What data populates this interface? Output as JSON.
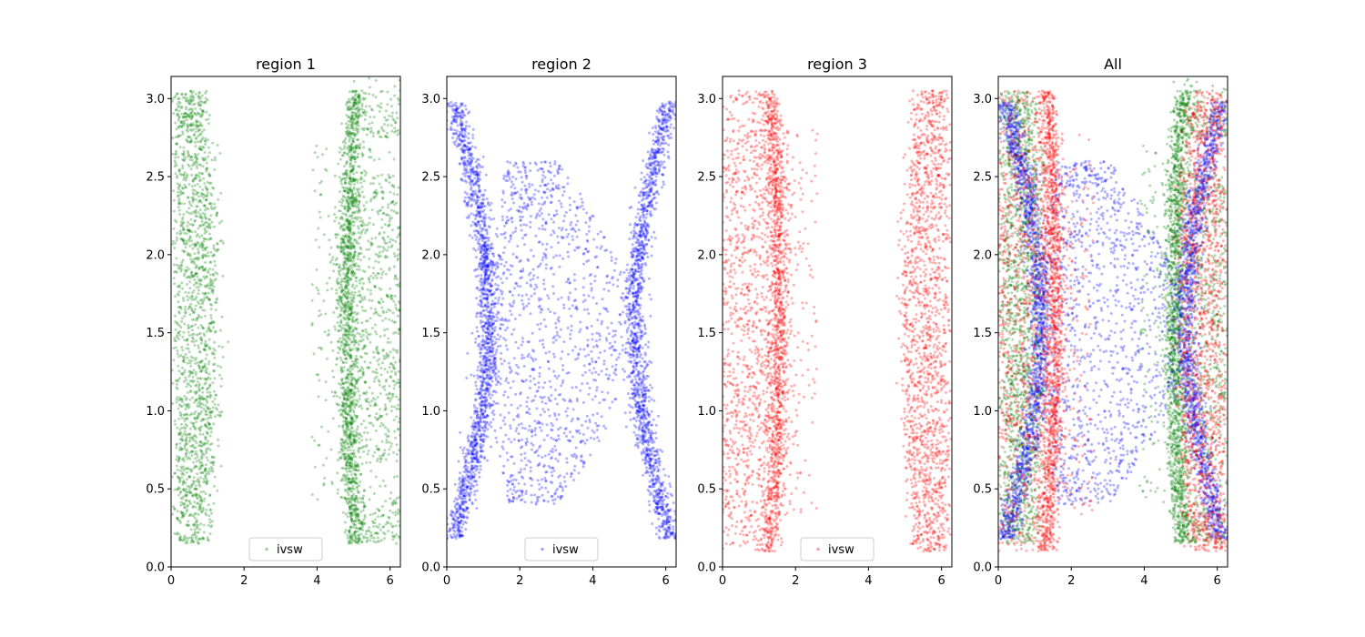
{
  "figure": {
    "background": "#ffffff"
  },
  "chart_data": [
    {
      "type": "scatter",
      "title": "region 1",
      "xlabel": "",
      "ylabel": "",
      "xlim": [
        0,
        6.283
      ],
      "ylim": [
        0,
        3.14159
      ],
      "xticks": [
        0,
        2,
        4,
        6
      ],
      "xtick_labels": [
        "0",
        "2",
        "4",
        "6"
      ],
      "yticks": [
        0.0,
        0.5,
        1.0,
        1.5,
        2.0,
        2.5,
        3.0
      ],
      "ytick_labels": [
        "0.0",
        "0.5",
        "1.0",
        "1.5",
        "2.0",
        "2.5",
        "3.0"
      ],
      "grid": false,
      "legend": {
        "position": "lower-center",
        "entries": [
          "ivsw"
        ]
      },
      "series": [
        {
          "name": "ivsw",
          "color": "#008000",
          "alpha": 0.3,
          "point_count": 60000,
          "distribution": "Dense vertical band near x≈0–1.2 spanning y≈0.15–3.0, and a C-shaped ring near x≈3.8–6.3 (inner edge ~4.8–5.3) spanning y≈0.15–3.05"
        }
      ]
    },
    {
      "type": "scatter",
      "title": "region 2",
      "xlabel": "",
      "ylabel": "",
      "xlim": [
        0,
        6.283
      ],
      "ylim": [
        0,
        3.14159
      ],
      "xticks": [
        0,
        2,
        4,
        6
      ],
      "xtick_labels": [
        "0",
        "2",
        "4",
        "6"
      ],
      "yticks": [
        0.0,
        0.5,
        1.0,
        1.5,
        2.0,
        2.5,
        3.0
      ],
      "ytick_labels": [
        "0.0",
        "0.5",
        "1.0",
        "1.5",
        "2.0",
        "2.5",
        "3.0"
      ],
      "grid": false,
      "legend": {
        "position": "lower-center",
        "entries": [
          "ivsw"
        ]
      },
      "series": [
        {
          "name": "ivsw",
          "color": "#0000ff",
          "alpha": 0.3,
          "point_count": 40000,
          "distribution": "Two dense curved bands at x≈1.0 and x≈5.2 spanning y≈0.2–2.95, sparse points filling an hourglass-shaped region between them (narrowest at y≈0.5 and y≈2.5)"
        }
      ]
    },
    {
      "type": "scatter",
      "title": "region 3",
      "xlabel": "",
      "ylabel": "",
      "xlim": [
        0,
        6.283
      ],
      "ylim": [
        0,
        3.14159
      ],
      "xticks": [
        0,
        2,
        4,
        6
      ],
      "xtick_labels": [
        "0",
        "2",
        "4",
        "6"
      ],
      "yticks": [
        0.0,
        0.5,
        1.0,
        1.5,
        2.0,
        2.5,
        3.0
      ],
      "ytick_labels": [
        "0.0",
        "0.5",
        "1.0",
        "1.5",
        "2.0",
        "2.5",
        "3.0"
      ],
      "grid": false,
      "legend": {
        "position": "lower-center",
        "entries": [
          "ivsw"
        ]
      },
      "series": [
        {
          "name": "ivsw",
          "color": "#ff0000",
          "alpha": 0.3,
          "point_count": 60000,
          "distribution": "Reversed C-shaped ring near x≈0–2.6 (dense band at x≈1.2) spanning y≈0.1–3.05, and a dense solid band x≈5.0–6.3 spanning y≈0.15–3.0"
        }
      ]
    },
    {
      "type": "scatter",
      "title": "All",
      "xlabel": "",
      "ylabel": "",
      "xlim": [
        0,
        6.283
      ],
      "ylim": [
        0,
        3.14159
      ],
      "xticks": [
        0,
        2,
        4,
        6
      ],
      "xtick_labels": [
        "0",
        "2",
        "4",
        "6"
      ],
      "yticks": [
        0.0,
        0.5,
        1.0,
        1.5,
        2.0,
        2.5,
        3.0
      ],
      "ytick_labels": [
        "0.0",
        "0.5",
        "1.0",
        "1.5",
        "2.0",
        "2.5",
        "3.0"
      ],
      "grid": false,
      "legend": null,
      "series": [
        {
          "name": "",
          "color": "#008000",
          "alpha": 0.3,
          "point_count": 60000,
          "distribution": "region 1 overlay"
        },
        {
          "name": "",
          "color": "#0000ff",
          "alpha": 0.3,
          "point_count": 40000,
          "distribution": "region 2 overlay"
        },
        {
          "name": "",
          "color": "#ff0000",
          "alpha": 0.3,
          "point_count": 60000,
          "distribution": "region 3 overlay"
        }
      ]
    }
  ]
}
